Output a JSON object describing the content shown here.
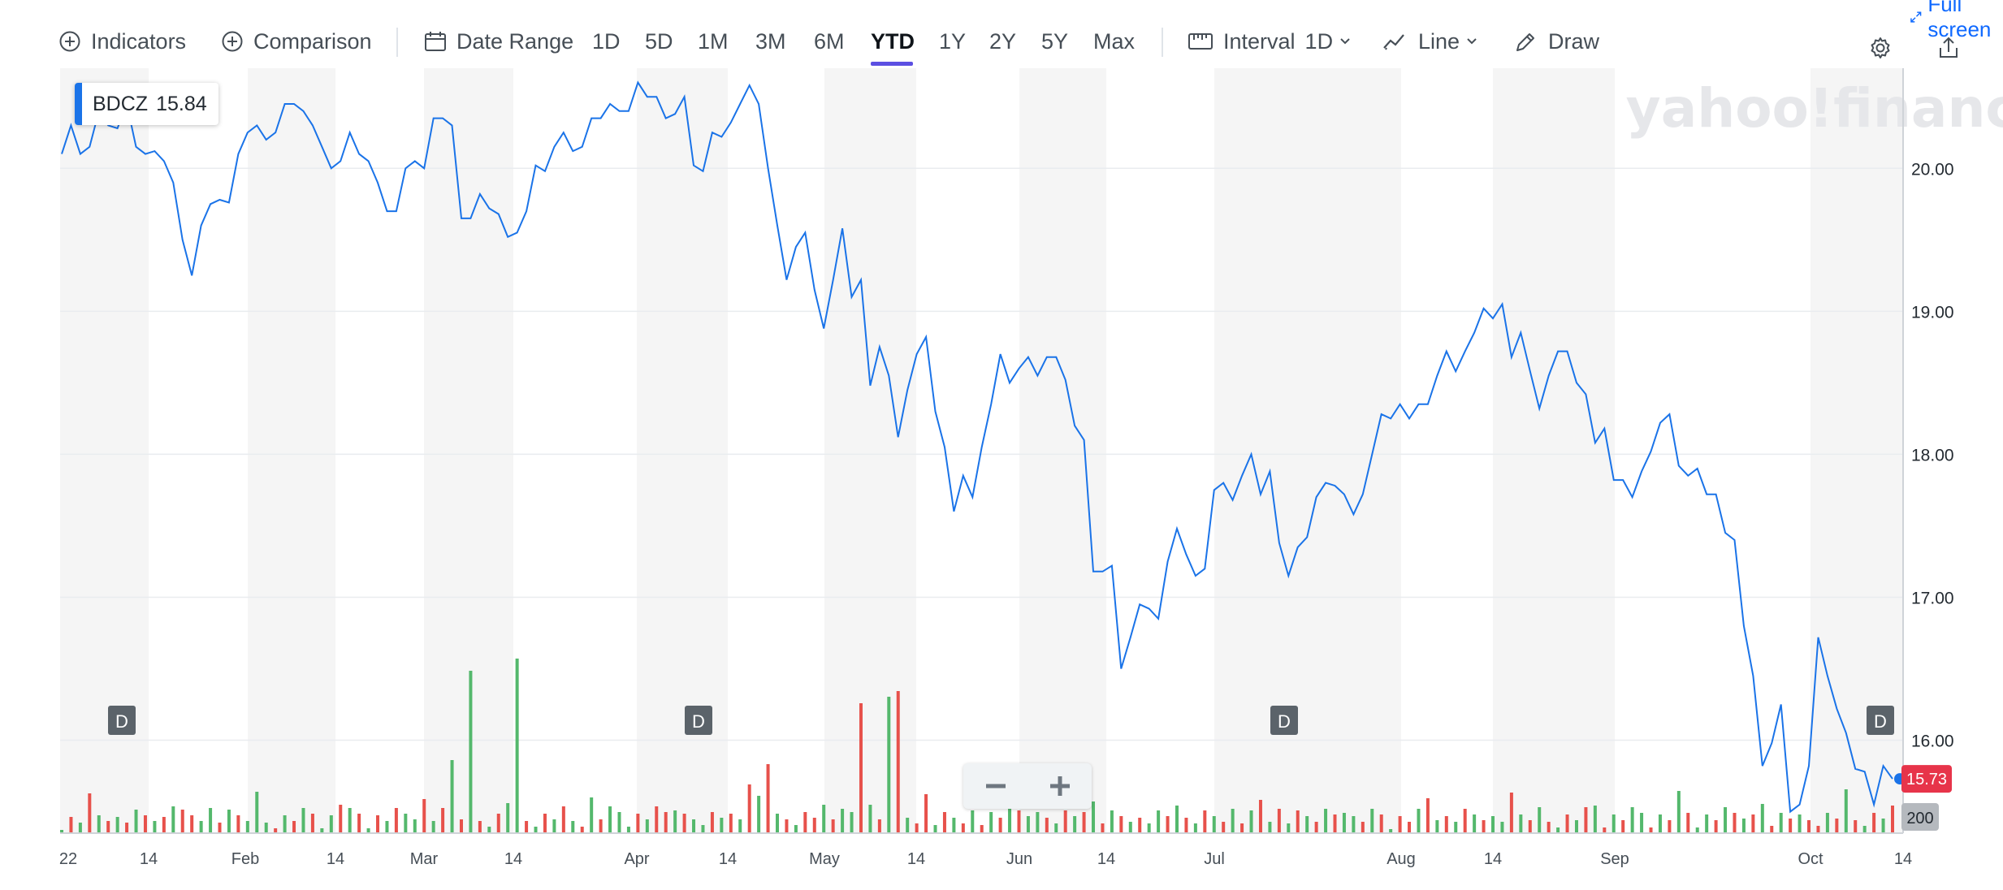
{
  "toolbar": {
    "indicators": "Indicators",
    "comparison": "Comparison",
    "date_range": "Date Range",
    "ranges": [
      "1D",
      "5D",
      "1M",
      "3M",
      "6M",
      "YTD",
      "1Y",
      "2Y",
      "5Y",
      "Max"
    ],
    "active_range": "YTD",
    "interval_label": "Interval",
    "interval_value": "1D",
    "chart_type": "Line",
    "draw": "Draw",
    "fullscreen": "Full screen"
  },
  "legend": {
    "symbol": "BDCZ",
    "value": "15.84"
  },
  "watermark": "yahoo!finance",
  "price_tag": "15.73",
  "volume_tag": "200",
  "dividend_marker": "D",
  "colors": {
    "line": "#1a73e8",
    "up": "#54b86c",
    "down": "#e7514b",
    "price_tag": "#e7344a",
    "accent": "#5b4fe2",
    "band": "#f5f5f5"
  },
  "chart_data": {
    "type": "line",
    "series": [
      {
        "values": [
          20.1,
          20.3,
          20.1,
          20.15,
          20.4,
          20.3,
          20.28,
          20.45,
          20.15,
          20.1,
          20.12,
          20.05,
          19.9,
          19.5,
          19.25,
          19.6,
          19.75,
          19.78,
          19.76,
          20.1,
          20.25,
          20.3,
          20.2,
          20.25,
          20.45,
          20.45,
          20.4,
          20.3,
          20.15,
          20.0,
          20.05,
          20.25,
          20.1,
          20.05,
          19.9,
          19.7,
          19.7,
          20.0,
          20.05,
          20.0,
          20.35,
          20.35,
          20.3,
          19.65,
          19.65,
          19.82,
          19.72,
          19.68,
          19.52,
          19.55,
          19.7,
          20.02,
          19.98,
          20.15,
          20.25,
          20.12,
          20.15,
          20.35,
          20.35,
          20.45,
          20.4,
          20.4,
          20.6,
          20.5,
          20.5,
          20.35,
          20.38,
          20.5,
          20.02,
          19.98,
          20.25,
          20.22,
          20.32,
          20.45,
          20.58,
          20.45,
          20.0,
          19.6,
          19.22,
          19.45,
          19.55,
          19.15,
          18.88,
          19.22,
          19.58,
          19.1,
          19.22,
          18.48,
          18.75,
          18.55,
          18.12,
          18.45,
          18.7,
          18.82,
          18.3,
          18.05,
          17.6,
          17.85,
          17.7,
          18.05,
          18.35,
          18.7,
          18.5,
          18.6,
          18.68,
          18.55,
          18.68,
          18.68,
          18.52,
          18.2,
          18.1,
          17.18,
          17.18,
          17.22,
          16.5,
          16.72,
          16.95,
          16.92,
          16.85,
          17.25,
          17.48,
          17.3,
          17.15,
          17.2,
          17.75,
          17.8,
          17.68,
          17.85,
          18.0,
          17.72,
          17.88,
          17.38,
          17.15,
          17.35,
          17.42,
          17.7,
          17.8,
          17.78,
          17.72,
          17.58,
          17.72,
          18.0,
          18.28,
          18.25,
          18.35,
          18.25,
          18.35,
          18.35,
          18.55,
          18.72,
          18.58,
          18.72,
          18.85,
          19.02,
          18.95,
          19.05,
          18.68,
          18.85,
          18.58,
          18.32,
          18.55,
          18.72,
          18.72,
          18.5,
          18.42,
          18.08,
          18.18,
          17.82,
          17.82,
          17.7,
          17.88,
          18.02,
          18.22,
          18.28,
          17.92,
          17.85,
          17.9,
          17.72,
          17.72,
          17.45,
          17.4,
          16.8,
          16.45,
          15.82,
          15.98,
          16.25,
          15.5,
          15.55,
          15.82,
          16.72,
          16.45,
          16.22,
          16.05,
          15.8,
          15.78,
          15.55,
          15.82,
          15.73
        ],
        "volume_colors": "gdgdgdgdgdgdgddggdgdgggdgdgdggdgdgdgdggdgdgdgdgdggdgdgdgdgdgggdgddgdggdgdgdgdgdgddgdggdgdgdgddgdgdgdgdgdggdgdgdgdgdgdggdgdgdgdgdgdgdgdgdgdggdgdgddgdgdgdgdggdgdgdgdgdgdgdggdgdgdggdgdgdgdgdgddgdgdgdgdg"
      }
    ],
    "x_labels": [
      "22",
      "14",
      "Feb",
      "14",
      "Mar",
      "14",
      "Apr",
      "14",
      "May",
      "14",
      "Jun",
      "14",
      "Jul",
      "Aug",
      "14",
      "Sep",
      "Oct",
      "14"
    ],
    "y_ticks": [
      "20.00",
      "19.00",
      "18.00",
      "17.00",
      "16.00"
    ],
    "ylim": [
      15.35,
      20.7
    ],
    "dividends": 4
  }
}
